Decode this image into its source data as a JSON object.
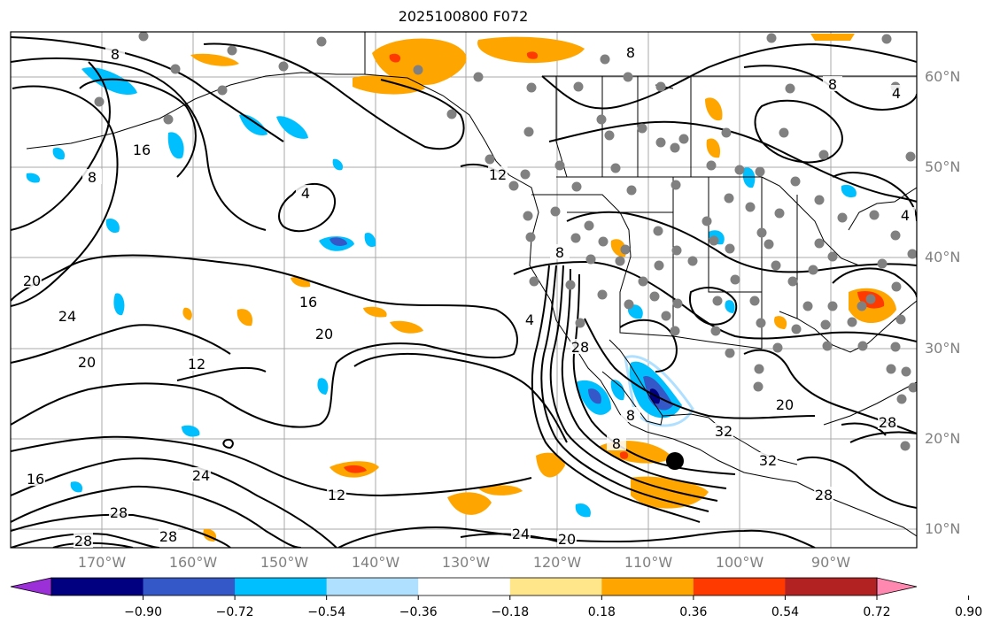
{
  "title": "2025100800 F072",
  "lat_labels": [
    "60°N",
    "50°N",
    "40°N",
    "30°N",
    "20°N",
    "10°N"
  ],
  "lon_labels": [
    "170°W",
    "160°W",
    "150°W",
    "140°W",
    "130°W",
    "120°W",
    "110°W",
    "100°W",
    "90°W"
  ],
  "colorbar": {
    "labels": [
      "−0.90",
      "−0.72",
      "−0.54",
      "−0.36",
      "−0.18",
      "0.18",
      "0.36",
      "0.54",
      "0.72",
      "0.90"
    ],
    "colors": [
      "#9b30d9",
      "#000080",
      "#3558c8",
      "#00bfff",
      "#b0e0ff",
      "#ffffff",
      "#ffe68a",
      "#ffa500",
      "#ff3a00",
      "#b22222",
      "#ff88b0"
    ]
  },
  "contour_labels": [
    "8",
    "8",
    "4",
    "16",
    "8",
    "4",
    "12",
    "8",
    "8",
    "4",
    "4",
    "20",
    "24",
    "20",
    "12",
    "16",
    "20",
    "28",
    "8",
    "32",
    "32",
    "20",
    "28",
    "28",
    "12",
    "16",
    "24",
    "28",
    "28",
    "28",
    "24",
    "20",
    "8"
  ],
  "colors": {
    "contour": "#000000",
    "grid": "#a0a0a0",
    "coast": "#000000",
    "station": "#808080",
    "label": "#808080"
  }
}
